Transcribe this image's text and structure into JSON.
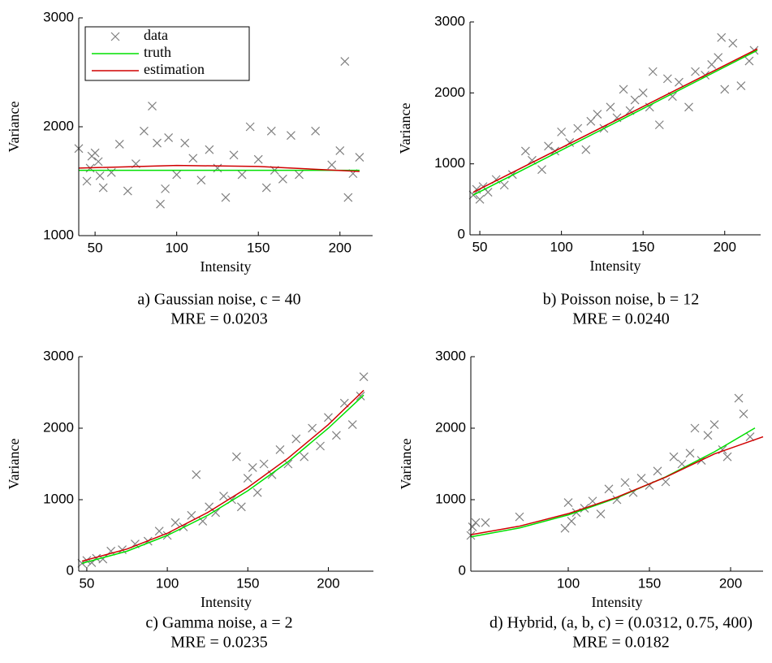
{
  "chart_data": [
    {
      "type": "scatter",
      "caption": "a) Gaussian noise, c = 40",
      "mre": "MRE = 0.0203",
      "xlabel": "Intensity",
      "ylabel": "Variance",
      "xlim": [
        40,
        220
      ],
      "ylim": [
        1000,
        3000
      ],
      "xticks": [
        50,
        100,
        150,
        200
      ],
      "yticks": [
        1000,
        2000,
        3000
      ],
      "legend": "upper left",
      "series": [
        {
          "name": "data",
          "color": "#808080",
          "marker": "x",
          "x": [
            40,
            45,
            47,
            48,
            50,
            52,
            53,
            55,
            60,
            65,
            70,
            75,
            80,
            85,
            88,
            90,
            93,
            95,
            100,
            105,
            110,
            115,
            120,
            125,
            130,
            135,
            140,
            145,
            150,
            155,
            158,
            160,
            165,
            170,
            175,
            185,
            195,
            200,
            203,
            205,
            208,
            212
          ],
          "values": [
            1800,
            1500,
            1620,
            1730,
            1760,
            1680,
            1550,
            1440,
            1580,
            1840,
            1410,
            1660,
            1960,
            2190,
            1850,
            1290,
            1430,
            1900,
            1560,
            1850,
            1710,
            1510,
            1790,
            1620,
            1350,
            1740,
            1560,
            2000,
            1700,
            1440,
            1960,
            1600,
            1520,
            1920,
            1560,
            1960,
            1650,
            1780,
            2600,
            1350,
            1570,
            1720
          ]
        },
        {
          "name": "truth",
          "color": "#00e000",
          "x": [
            40,
            212
          ],
          "values": [
            1600,
            1600
          ]
        },
        {
          "name": "estimation",
          "color": "#d00000",
          "x": [
            40,
            100,
            150,
            212
          ],
          "values": [
            1620,
            1645,
            1635,
            1590
          ]
        }
      ]
    },
    {
      "type": "scatter",
      "caption": "b) Poisson noise, b = 12",
      "mre": "MRE = 0.0240",
      "xlabel": "Intensity",
      "ylabel": "Variance",
      "xlim": [
        44,
        222
      ],
      "ylim": [
        0,
        3000
      ],
      "xticks": [
        50,
        100,
        150,
        200
      ],
      "yticks": [
        0,
        1000,
        2000,
        3000
      ],
      "series": [
        {
          "name": "data",
          "color": "#808080",
          "marker": "x",
          "x": [
            46,
            48,
            50,
            52,
            55,
            60,
            65,
            70,
            78,
            82,
            88,
            92,
            96,
            100,
            105,
            110,
            115,
            118,
            122,
            126,
            130,
            134,
            138,
            142,
            145,
            150,
            154,
            156,
            160,
            165,
            168,
            172,
            178,
            182,
            188,
            192,
            196,
            198,
            200,
            205,
            210,
            215,
            218
          ],
          "values": [
            560,
            640,
            500,
            680,
            600,
            780,
            700,
            850,
            1180,
            1050,
            920,
            1250,
            1180,
            1450,
            1300,
            1500,
            1200,
            1600,
            1700,
            1500,
            1800,
            1650,
            2050,
            1750,
            1900,
            2000,
            1800,
            2300,
            1550,
            2200,
            1950,
            2150,
            1800,
            2300,
            2250,
            2400,
            2500,
            2780,
            2050,
            2700,
            2100,
            2450,
            2600
          ]
        },
        {
          "name": "truth",
          "color": "#00e000",
          "x": [
            46,
            220
          ],
          "values": [
            560,
            2600
          ]
        },
        {
          "name": "estimation",
          "color": "#d00000",
          "x": [
            46,
            220
          ],
          "values": [
            600,
            2620
          ]
        }
      ]
    },
    {
      "type": "scatter",
      "caption": "c) Gamma noise, a = 2",
      "mre": "MRE = 0.0235",
      "xlabel": "Intensity",
      "ylabel": "Variance",
      "xlim": [
        45,
        228
      ],
      "ylim": [
        0,
        3000
      ],
      "xticks": [
        50,
        100,
        150,
        200
      ],
      "yticks": [
        0,
        1000,
        2000,
        3000
      ],
      "series": [
        {
          "name": "data",
          "color": "#808080",
          "marker": "x",
          "x": [
            47,
            50,
            53,
            56,
            60,
            65,
            72,
            80,
            88,
            95,
            100,
            105,
            110,
            115,
            118,
            122,
            126,
            130,
            135,
            140,
            143,
            146,
            150,
            153,
            156,
            160,
            165,
            170,
            175,
            180,
            185,
            190,
            195,
            200,
            205,
            210,
            215,
            220,
            222
          ],
          "values": [
            110,
            150,
            120,
            180,
            170,
            280,
            300,
            380,
            420,
            560,
            500,
            680,
            620,
            780,
            1350,
            700,
            900,
            820,
            1050,
            1000,
            1600,
            900,
            1300,
            1450,
            1100,
            1500,
            1350,
            1700,
            1500,
            1850,
            1600,
            2000,
            1750,
            2150,
            1900,
            2350,
            2050,
            2450,
            2720
          ]
        },
        {
          "name": "truth",
          "color": "#00e000",
          "x": [
            47,
            75,
            100,
            125,
            150,
            175,
            200,
            222
          ],
          "values": [
            110,
            280,
            500,
            780,
            1125,
            1530,
            2000,
            2464
          ]
        },
        {
          "name": "estimation",
          "color": "#d00000",
          "x": [
            47,
            75,
            100,
            125,
            150,
            175,
            200,
            222
          ],
          "values": [
            140,
            310,
            530,
            820,
            1170,
            1580,
            2050,
            2530
          ]
        }
      ]
    },
    {
      "type": "scatter",
      "caption": "d) Hybrid, (a, b, c) = (0.0312, 0.75, 400)",
      "mre": "MRE = 0.0182",
      "xlabel": "Intensity",
      "ylabel": "Variance",
      "xlim": [
        40,
        220
      ],
      "ylim": [
        0,
        3000
      ],
      "xticks": [
        100,
        150,
        200
      ],
      "yticks": [
        0,
        1000,
        2000,
        3000
      ],
      "series": [
        {
          "name": "data",
          "color": "#808080",
          "marker": "x",
          "x": [
            40,
            41,
            43,
            49,
            70,
            98,
            100,
            102,
            105,
            110,
            115,
            120,
            125,
            130,
            135,
            140,
            145,
            150,
            155,
            160,
            165,
            170,
            175,
            178,
            182,
            186,
            190,
            195,
            198,
            205,
            208,
            212
          ],
          "values": [
            500,
            620,
            680,
            680,
            760,
            600,
            960,
            700,
            820,
            880,
            980,
            800,
            1150,
            1000,
            1240,
            1100,
            1300,
            1200,
            1400,
            1250,
            1600,
            1500,
            1650,
            2000,
            1550,
            1900,
            2050,
            1700,
            1600,
            2420,
            2200,
            1880
          ]
        },
        {
          "name": "truth",
          "color": "#00e000",
          "x": [
            40,
            70,
            100,
            130,
            160,
            190,
            215
          ],
          "values": [
            480,
            605,
            787,
            1025,
            1319,
            1669,
            2003
          ]
        },
        {
          "name": "estimation",
          "color": "#d00000",
          "x": [
            40,
            70,
            100,
            130,
            160,
            190,
            220
          ],
          "values": [
            510,
            630,
            805,
            1035,
            1315,
            1640,
            1880
          ]
        }
      ]
    }
  ]
}
